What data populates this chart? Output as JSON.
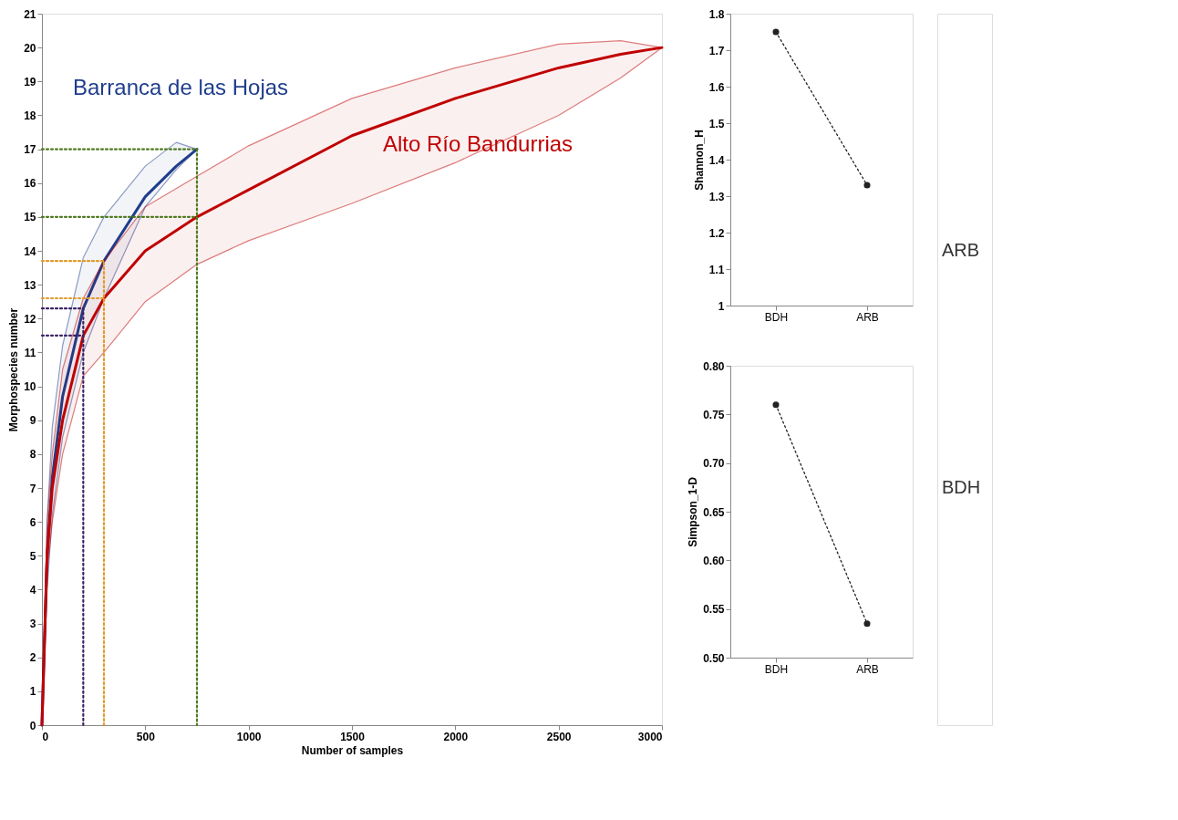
{
  "chart_data": [
    {
      "type": "line",
      "xlabel": "Number of samples",
      "ylabel": "Morphospecies number",
      "xlim": [
        0,
        3000
      ],
      "ylim": [
        0,
        21
      ],
      "xticks": [
        0,
        500,
        1000,
        1500,
        2000,
        2500,
        3000
      ],
      "yticks": [
        0,
        1,
        2,
        3,
        4,
        5,
        6,
        7,
        8,
        9,
        10,
        11,
        12,
        13,
        14,
        15,
        16,
        17,
        18,
        19,
        20,
        21
      ],
      "grid": false,
      "series": [
        {
          "color": "#1f3d8c",
          "line_style": "solid",
          "x": [
            0,
            25,
            50,
            100,
            200,
            300,
            500,
            650,
            750
          ],
          "values": [
            0,
            5,
            7.3,
            9.7,
            12.3,
            13.7,
            15.6,
            16.5,
            17
          ],
          "upper": [
            0,
            6,
            8.8,
            11.2,
            13.8,
            15,
            16.5,
            17.2,
            17
          ],
          "lower": [
            0,
            4,
            6.2,
            8.5,
            11,
            12.6,
            15.3,
            16.4,
            17
          ]
        },
        {
          "color": "#c00000",
          "line_style": "solid",
          "x": [
            0,
            25,
            50,
            100,
            200,
            300,
            500,
            750,
            1000,
            1500,
            2000,
            2500,
            2800,
            3000
          ],
          "values": [
            0,
            5,
            7,
            9,
            11.5,
            12.6,
            14,
            15,
            15.8,
            17.4,
            18.5,
            19.4,
            19.8,
            20
          ],
          "upper": [
            0,
            6,
            8,
            10.5,
            12.6,
            13.7,
            15.3,
            16.2,
            17.1,
            18.5,
            19.4,
            20.1,
            20.2,
            20
          ],
          "lower": [
            0,
            4.5,
            6,
            8,
            10.3,
            11,
            12.5,
            13.6,
            14.3,
            15.4,
            16.6,
            18,
            19.1,
            20
          ]
        },
        {
          "color": "#4f7a1f",
          "line_style": "dotted",
          "x": [
            0,
            750,
            750
          ],
          "values": [
            17,
            17,
            0
          ]
        },
        {
          "color": "#4f7a1f",
          "line_style": "dotted",
          "x": [
            0,
            750
          ],
          "values": [
            15,
            15
          ]
        },
        {
          "color": "#e39a2a",
          "line_style": "dotted",
          "x": [
            0,
            300,
            300
          ],
          "values": [
            13.7,
            13.7,
            0
          ]
        },
        {
          "color": "#e39a2a",
          "line_style": "dotted",
          "x": [
            0,
            300
          ],
          "values": [
            12.6,
            12.6
          ]
        },
        {
          "color": "#3b2466",
          "line_style": "dotted",
          "x": [
            0,
            200,
            200
          ],
          "values": [
            12.3,
            12.3,
            0
          ]
        },
        {
          "color": "#3b2466",
          "line_style": "dotted",
          "x": [
            0,
            200
          ],
          "values": [
            11.5,
            11.5
          ]
        }
      ],
      "annotations": [
        "Barranca de las Hojas",
        "Alto Río Bandurrias"
      ]
    },
    {
      "type": "line",
      "ylabel": "Shannon_H",
      "categories": [
        "BDH",
        "ARB"
      ],
      "ylim": [
        1,
        1.8
      ],
      "yticks": [
        1,
        1.1,
        1.2,
        1.3,
        1.4,
        1.5,
        1.6,
        1.7,
        1.8
      ],
      "grid": false,
      "marker": "circle",
      "line_style": "dotted",
      "series": [
        {
          "color": "#222222",
          "values": [
            1.75,
            1.33
          ]
        }
      ]
    },
    {
      "type": "line",
      "ylabel": "Simpson_1-D",
      "categories": [
        "BDH",
        "ARB"
      ],
      "ylim": [
        0.5,
        0.8
      ],
      "yticks": [
        {
          "value": 0.5,
          "label": "0.50"
        },
        {
          "value": 0.55,
          "label": "0.55"
        },
        {
          "value": 0.6,
          "label": "0.60"
        },
        {
          "value": 0.65,
          "label": "0.65"
        },
        {
          "value": 0.7,
          "label": "0.70"
        },
        {
          "value": 0.75,
          "label": "0.75"
        },
        {
          "value": 0.8,
          "label": "0.80"
        }
      ],
      "grid": false,
      "marker": "circle",
      "line_style": "dotted",
      "series": [
        {
          "color": "#222222",
          "values": [
            0.76,
            0.535
          ]
        }
      ]
    },
    {
      "type": "other",
      "annotations": [
        "ARB",
        "BDH"
      ]
    }
  ]
}
